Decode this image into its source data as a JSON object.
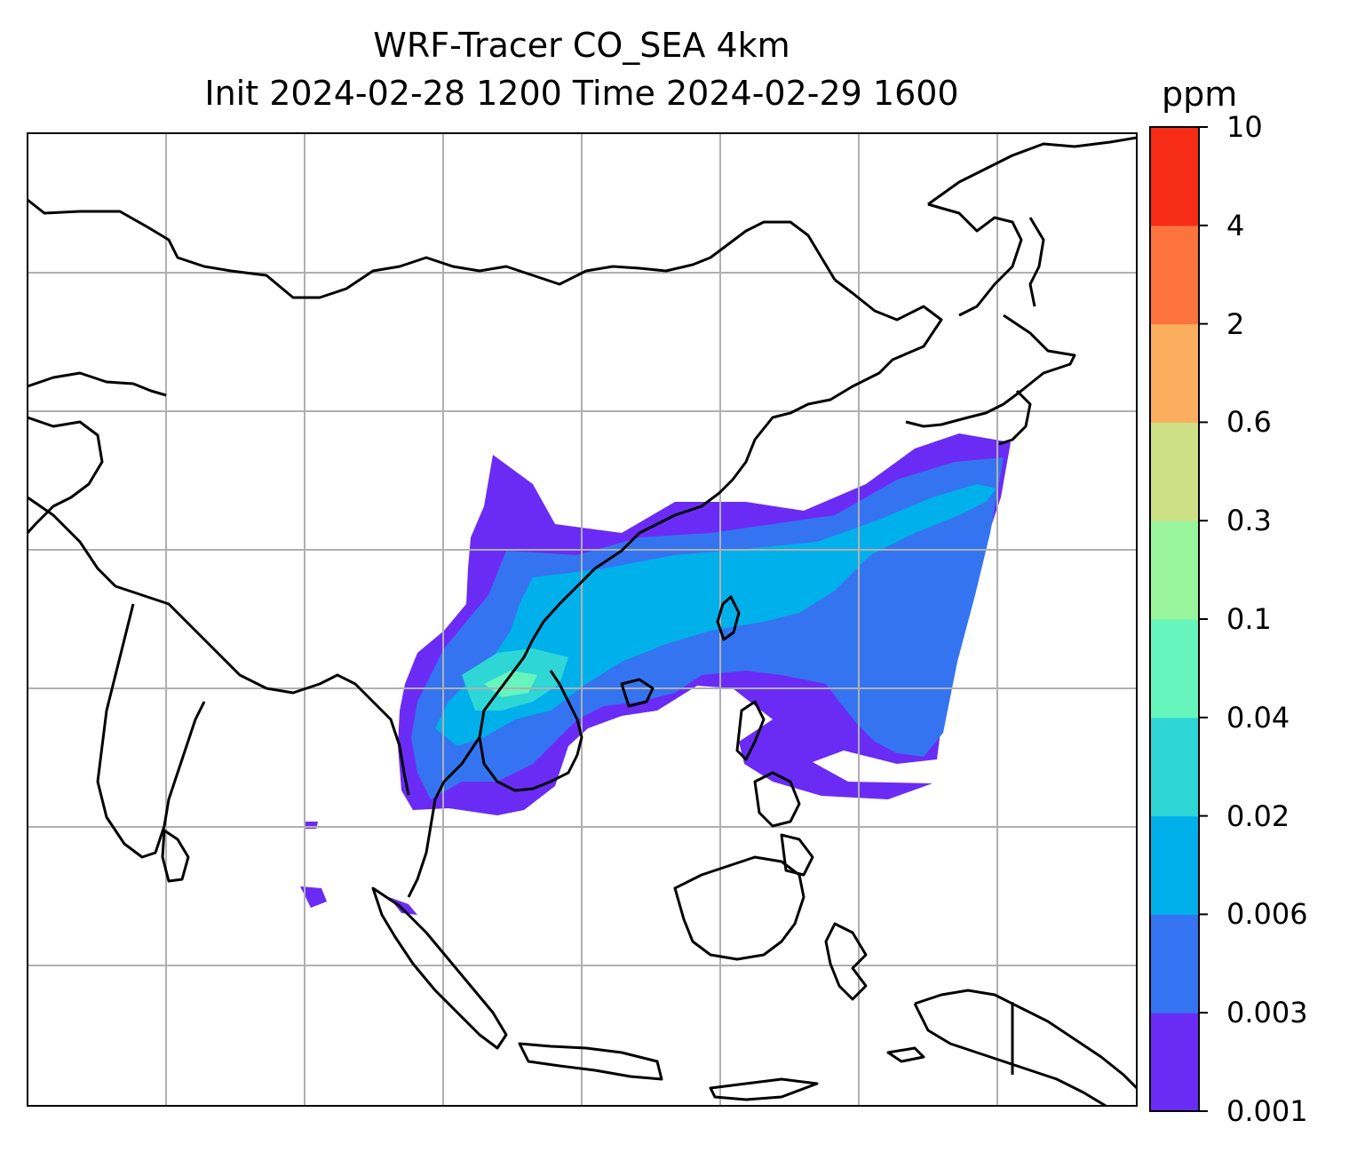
{
  "title": {
    "line1": "WRF-Tracer CO_SEA 4km",
    "line2": "Init 2024-02-28 1200 Time 2024-02-29 1600"
  },
  "colorbar": {
    "unit": "ppm",
    "levels": [
      "0.001",
      "0.003",
      "0.006",
      "0.02",
      "0.04",
      "0.1",
      "0.3",
      "0.6",
      "2",
      "4",
      "10"
    ],
    "colors": [
      "#6a2cf5",
      "#3574f0",
      "#00b0ea",
      "#2ed6d6",
      "#66f5bd",
      "#99f59b",
      "#cde085",
      "#fbae5e",
      "#fd733d",
      "#f72c16"
    ]
  },
  "map": {
    "gridlines": true,
    "gridline_color": "#b0b0b0",
    "coastline_color": "#000000",
    "wind_barb_color": "#000000",
    "tracer_plume_levels_shown": [
      "0.001",
      "0.003",
      "0.006",
      "0.02",
      "0.04",
      "0.1"
    ]
  }
}
